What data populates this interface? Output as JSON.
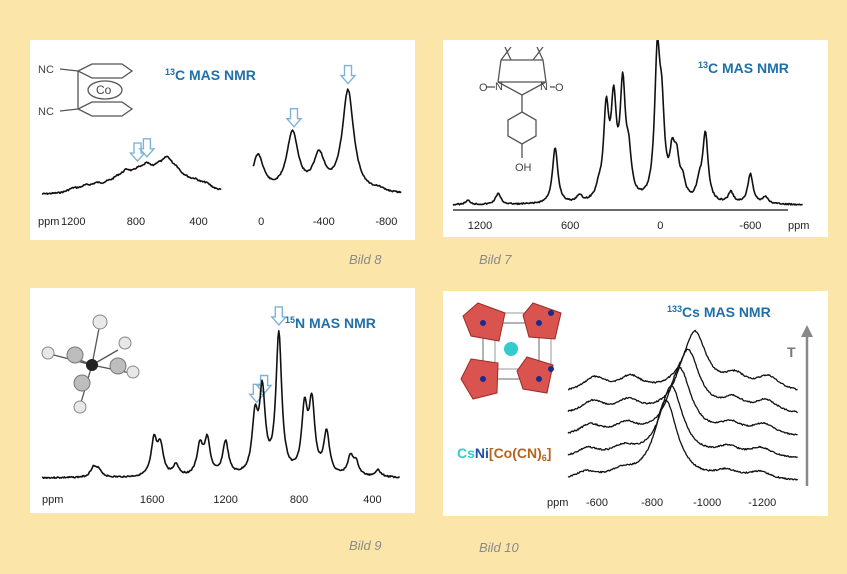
{
  "captions": {
    "p8": "Bild 8",
    "p7": "Bild 7",
    "p9": "Bild 9",
    "p10": "Bild 10"
  },
  "colors": {
    "background": "#fce5a9",
    "title": "#1f6fa8",
    "arrow": "#7fb3d5",
    "octahedron": "#d9534f",
    "cs_atom": "#33cccc"
  },
  "panels": {
    "p8": {
      "title_sup": "13",
      "title_rest": "C MAS NMR",
      "xlabel": "ppm",
      "mol_nc1": "NC",
      "mol_nc2": "NC",
      "mol_co": "Co"
    },
    "p7": {
      "title_sup": "13",
      "title_rest": "C MAS NMR",
      "xlabel": "ppm",
      "mol_oh": "OH",
      "mol_o1": "O",
      "mol_o2": "O",
      "mol_n1": "N",
      "mol_n2": "N"
    },
    "p9": {
      "title_sup": "15",
      "title_rest": "N MAS NMR",
      "xlabel": "ppm"
    },
    "p10": {
      "title_sup": "133",
      "title_rest": "Cs MAS NMR",
      "xlabel": "ppm",
      "temp_label": "T",
      "formula_cs": "Cs",
      "formula_ni": "Ni",
      "formula_a": "[Co(CN)",
      "formula_sub": "6",
      "formula_b": "]"
    }
  },
  "chart_data": [
    {
      "id": "p8",
      "type": "line",
      "title": "13C MAS NMR",
      "xlabel": "ppm",
      "xlim": [
        1400,
        -900
      ],
      "x_reversed": true,
      "xticks": [
        1200,
        800,
        400,
        0,
        -400,
        -800
      ],
      "gap": [
        250,
        50
      ],
      "peaks": [
        {
          "x": 1200,
          "h": 0.04
        },
        {
          "x": 1120,
          "h": 0.05
        },
        {
          "x": 1050,
          "h": 0.06
        },
        {
          "x": 980,
          "h": 0.05
        },
        {
          "x": 920,
          "h": 0.08
        },
        {
          "x": 860,
          "h": 0.14
        },
        {
          "x": 790,
          "h": 0.12
        },
        {
          "x": 730,
          "h": 0.17
        },
        {
          "x": 660,
          "h": 0.14
        },
        {
          "x": 600,
          "h": 0.23
        },
        {
          "x": 540,
          "h": 0.13
        },
        {
          "x": 480,
          "h": 0.06
        },
        {
          "x": 420,
          "h": 0.07
        },
        {
          "x": 350,
          "h": 0.06
        },
        {
          "x": 20,
          "h": 0.36
        },
        {
          "x": -200,
          "h": 0.58
        },
        {
          "x": -370,
          "h": 0.34
        },
        {
          "x": -555,
          "h": 1.0
        },
        {
          "x": -750,
          "h": 0.03
        }
      ],
      "arrows_at": [
        790,
        730,
        -210,
        -555
      ]
    },
    {
      "id": "p7",
      "type": "line",
      "title": "13C MAS NMR",
      "xlabel": "ppm",
      "xlim": [
        1380,
        -950
      ],
      "x_reversed": true,
      "xticks": [
        1200,
        600,
        0,
        -600
      ],
      "peaks": [
        {
          "x": 1280,
          "h": 0.03
        },
        {
          "x": 1080,
          "h": 0.08
        },
        {
          "x": 700,
          "h": 0.41
        },
        {
          "x": 540,
          "h": 0.05
        },
        {
          "x": 410,
          "h": 0.07
        },
        {
          "x": 360,
          "h": 0.64
        },
        {
          "x": 310,
          "h": 0.67
        },
        {
          "x": 250,
          "h": 0.8
        },
        {
          "x": 210,
          "h": 0.28
        },
        {
          "x": 20,
          "h": 1.0
        },
        {
          "x": -10,
          "h": 0.55
        },
        {
          "x": -80,
          "h": 0.3
        },
        {
          "x": -110,
          "h": 0.25
        },
        {
          "x": -150,
          "h": 0.12
        },
        {
          "x": -260,
          "h": 0.12
        },
        {
          "x": -300,
          "h": 0.5
        },
        {
          "x": -470,
          "h": 0.08
        },
        {
          "x": -600,
          "h": 0.22
        },
        {
          "x": -700,
          "h": 0.05
        }
      ]
    },
    {
      "id": "p9",
      "type": "line",
      "title": "15N MAS NMR",
      "xlabel": "ppm",
      "xlim": [
        2200,
        250
      ],
      "x_reversed": true,
      "xticks": [
        1600,
        1200,
        800,
        400
      ],
      "peaks": [
        {
          "x": 1920,
          "h": 0.07
        },
        {
          "x": 1890,
          "h": 0.05
        },
        {
          "x": 1590,
          "h": 0.25
        },
        {
          "x": 1555,
          "h": 0.21
        },
        {
          "x": 1470,
          "h": 0.08
        },
        {
          "x": 1340,
          "h": 0.21
        },
        {
          "x": 1300,
          "h": 0.25
        },
        {
          "x": 1200,
          "h": 0.24
        },
        {
          "x": 1040,
          "h": 0.38
        },
        {
          "x": 1000,
          "h": 0.57
        },
        {
          "x": 910,
          "h": 1.0
        },
        {
          "x": 770,
          "h": 0.45
        },
        {
          "x": 730,
          "h": 0.49
        },
        {
          "x": 650,
          "h": 0.3
        },
        {
          "x": 520,
          "h": 0.13
        },
        {
          "x": 490,
          "h": 0.09
        },
        {
          "x": 370,
          "h": 0.05
        }
      ],
      "arrows_at": [
        1030,
        990,
        910
      ]
    },
    {
      "id": "p10",
      "type": "line",
      "title": "133Cs MAS NMR",
      "xlabel": "ppm",
      "xlim": [
        -440,
        -1330
      ],
      "x_reversed": true,
      "xticks": [
        -600,
        -800,
        -1000,
        -1200
      ],
      "series": [
        {
          "peaks": [
            {
              "x": -850,
              "h": 1.0
            }
          ]
        },
        {
          "peaks": [
            {
              "x": -870,
              "h": 0.9
            }
          ]
        },
        {
          "peaks": [
            {
              "x": -900,
              "h": 0.85
            }
          ]
        },
        {
          "peaks": [
            {
              "x": -930,
              "h": 0.8
            }
          ]
        },
        {
          "peaks": [
            {
              "x": -955,
              "h": 0.75
            }
          ]
        }
      ],
      "sidebands": [
        -560,
        -690,
        -1070,
        -1190
      ]
    }
  ]
}
